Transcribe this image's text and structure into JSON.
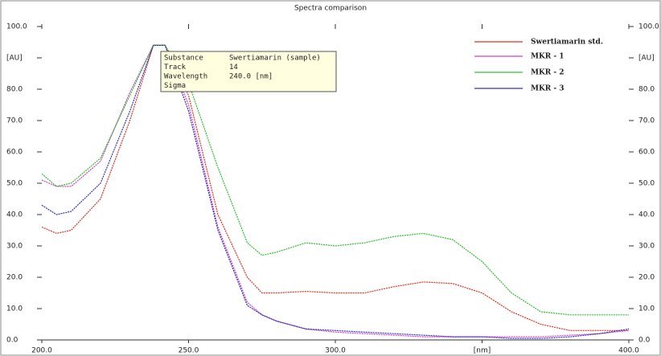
{
  "chart_data": {
    "type": "line",
    "title": "Spectra comparison",
    "x": [
      200,
      205,
      210,
      220,
      230,
      238,
      242,
      250,
      260,
      270,
      275,
      280,
      290,
      300,
      310,
      320,
      330,
      340,
      350,
      360,
      370,
      380,
      390,
      400
    ],
    "series": [
      {
        "name": "Swertiamarin std.",
        "color": "#e03020",
        "values": [
          36,
          34,
          35,
          45,
          70,
          94,
          94,
          78,
          40,
          20,
          15,
          15,
          15.5,
          15,
          15,
          17,
          18.5,
          18,
          15,
          9,
          5,
          3,
          3,
          3
        ]
      },
      {
        "name": "MKR - 1",
        "color": "#d040c0",
        "values": [
          51,
          49,
          49,
          57,
          79,
          94,
          94,
          75,
          36,
          12,
          8,
          6,
          3.5,
          2.5,
          2,
          1.5,
          1,
          1,
          1,
          1,
          1,
          1.5,
          2,
          3
        ]
      },
      {
        "name": "MKR - 2",
        "color": "#30c030",
        "values": [
          53,
          49,
          50,
          58,
          78,
          94,
          94,
          82,
          55,
          31,
          27,
          28,
          31,
          30,
          31,
          33,
          34,
          32,
          25,
          15,
          9,
          8,
          8,
          8
        ]
      },
      {
        "name": "MKR - 3",
        "color": "#3030c0",
        "values": [
          43,
          40,
          41,
          50,
          73,
          94,
          94,
          73,
          35,
          11,
          8,
          6,
          3.5,
          3,
          2.5,
          2,
          1.5,
          1,
          1,
          0.5,
          0.5,
          1,
          2,
          3.5
        ]
      }
    ],
    "xlim": [
      200,
      400
    ],
    "xticks": [
      {
        "value": 200,
        "label": "200.0"
      },
      {
        "value": 250,
        "label": "250.0"
      },
      {
        "value": 300,
        "label": "300.0"
      },
      {
        "value": 350,
        "label": "[nm]"
      },
      {
        "value": 400,
        "label": "400.0"
      }
    ],
    "ylim": [
      0,
      100
    ],
    "yticks": [
      {
        "value": 0,
        "label": "0.0"
      },
      {
        "value": 10,
        "label": "10.0"
      },
      {
        "value": 20,
        "label": "20.0"
      },
      {
        "value": 30,
        "label": "30.0"
      },
      {
        "value": 40,
        "label": "40.0"
      },
      {
        "value": 50,
        "label": "50.0"
      },
      {
        "value": 60,
        "label": "60.0"
      },
      {
        "value": 70,
        "label": "70.0"
      },
      {
        "value": 80,
        "label": "80.0"
      },
      {
        "value": 90,
        "label": "[AU]"
      },
      {
        "value": 100,
        "label": "100.0"
      }
    ],
    "tooltip": [
      {
        "label": "Substance",
        "value": "Swertiamarin (sample)"
      },
      {
        "label": "Track",
        "value": "14"
      },
      {
        "label": "Wavelength",
        "value": "240.0 [nm]"
      },
      {
        "label": "Sigma"
      }
    ]
  }
}
